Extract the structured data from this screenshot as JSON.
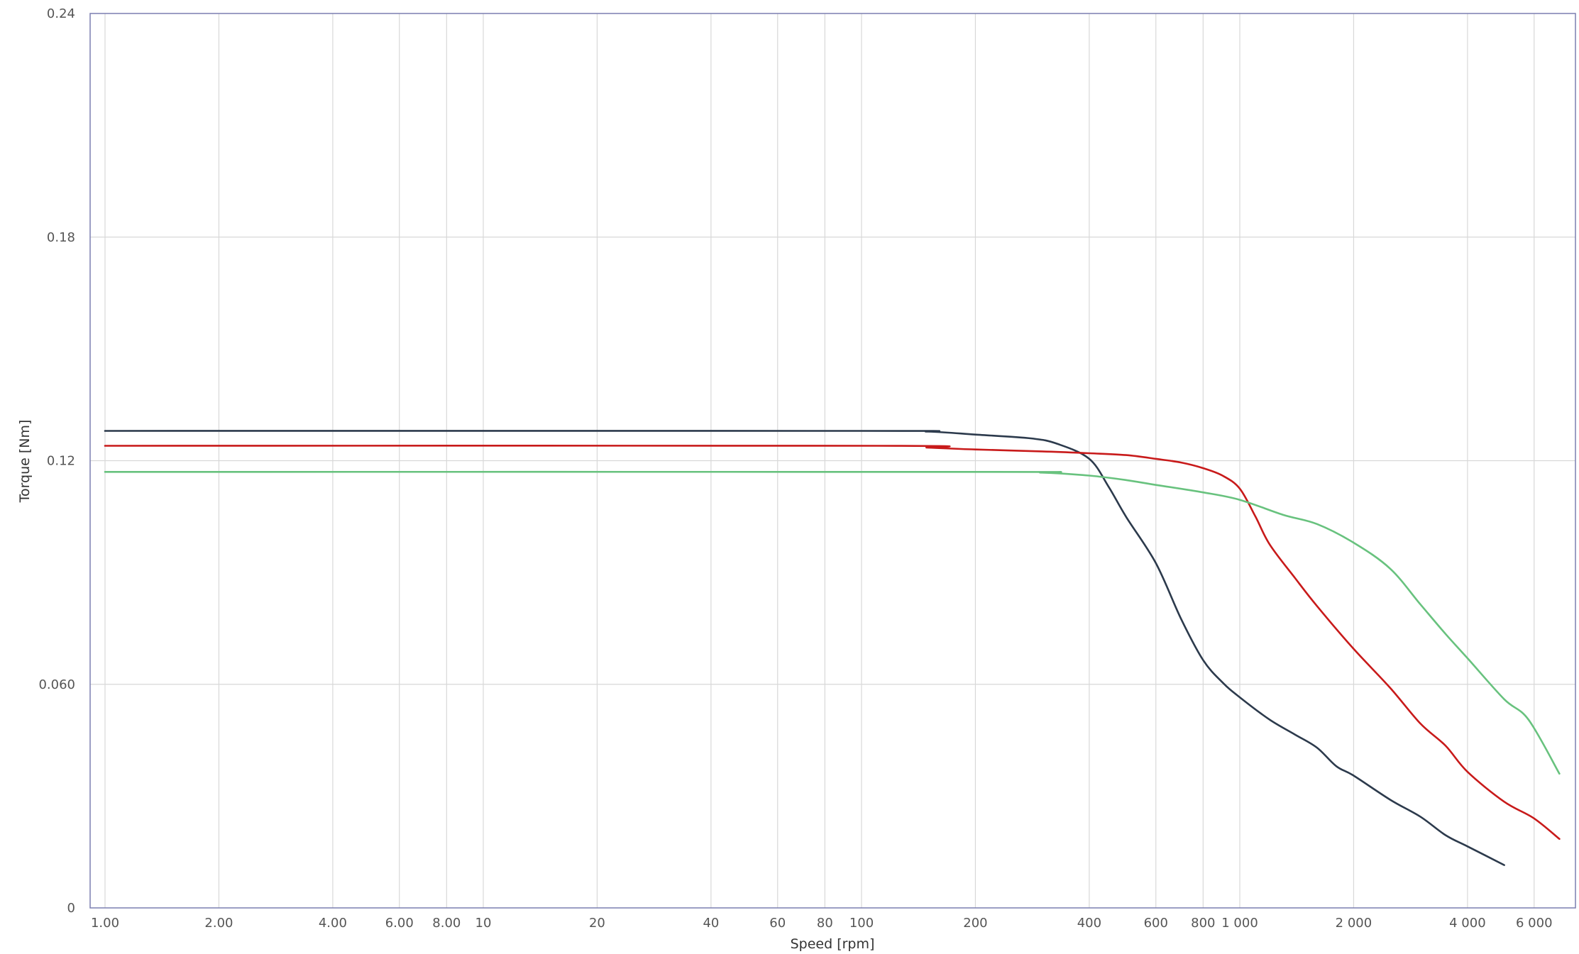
{
  "chart_data": {
    "type": "line",
    "title": "",
    "xlabel": "Speed [rpm]",
    "ylabel": "Torque [Nm]",
    "x_scale": "log",
    "xlim": [
      1,
      7500
    ],
    "ylim": [
      0,
      0.24
    ],
    "grid": true,
    "legend": "none",
    "x_ticks": [
      {
        "value": 1,
        "label": "1.00"
      },
      {
        "value": 2,
        "label": "2.00"
      },
      {
        "value": 4,
        "label": "4.00"
      },
      {
        "value": 6,
        "label": "6.00"
      },
      {
        "value": 8,
        "label": "8.00"
      },
      {
        "value": 10,
        "label": "10"
      },
      {
        "value": 20,
        "label": "20"
      },
      {
        "value": 40,
        "label": "40"
      },
      {
        "value": 60,
        "label": "60"
      },
      {
        "value": 80,
        "label": "80"
      },
      {
        "value": 100,
        "label": "100"
      },
      {
        "value": 200,
        "label": "200"
      },
      {
        "value": 400,
        "label": "400"
      },
      {
        "value": 600,
        "label": "600"
      },
      {
        "value": 800,
        "label": "800"
      },
      {
        "value": 1000,
        "label": "1 000"
      },
      {
        "value": 2000,
        "label": "2 000"
      },
      {
        "value": 4000,
        "label": "4 000"
      },
      {
        "value": 6000,
        "label": "6 000"
      }
    ],
    "y_ticks": [
      {
        "value": 0,
        "label": "0"
      },
      {
        "value": 0.06,
        "label": "0.060"
      },
      {
        "value": 0.12,
        "label": "0.12"
      },
      {
        "value": 0.18,
        "label": "0.18"
      },
      {
        "value": 0.24,
        "label": "0.24"
      }
    ],
    "series": [
      {
        "color": "#2c3a4c",
        "points": [
          [
            1,
            0.128
          ],
          [
            100,
            0.128
          ],
          [
            150,
            0.1278
          ],
          [
            200,
            0.127
          ],
          [
            280,
            0.126
          ],
          [
            330,
            0.1245
          ],
          [
            400,
            0.1205
          ],
          [
            450,
            0.113
          ],
          [
            500,
            0.105
          ],
          [
            600,
            0.0925
          ],
          [
            700,
            0.0775
          ],
          [
            800,
            0.0665
          ],
          [
            900,
            0.0605
          ],
          [
            1000,
            0.0565
          ],
          [
            1200,
            0.0505
          ],
          [
            1400,
            0.0465
          ],
          [
            1600,
            0.043
          ],
          [
            1800,
            0.038
          ],
          [
            2000,
            0.0355
          ],
          [
            2500,
            0.029
          ],
          [
            3000,
            0.0245
          ],
          [
            3500,
            0.0195
          ],
          [
            4000,
            0.0165
          ],
          [
            5000,
            0.0115
          ]
        ]
      },
      {
        "color": "#c81a1a",
        "points": [
          [
            1,
            0.124
          ],
          [
            110,
            0.124
          ],
          [
            150,
            0.1235
          ],
          [
            200,
            0.123
          ],
          [
            300,
            0.1225
          ],
          [
            400,
            0.122
          ],
          [
            500,
            0.1215
          ],
          [
            600,
            0.1205
          ],
          [
            700,
            0.1195
          ],
          [
            800,
            0.118
          ],
          [
            900,
            0.116
          ],
          [
            1000,
            0.1125
          ],
          [
            1100,
            0.105
          ],
          [
            1200,
            0.0975
          ],
          [
            1400,
            0.0885
          ],
          [
            1600,
            0.081
          ],
          [
            2000,
            0.0695
          ],
          [
            2500,
            0.059
          ],
          [
            3000,
            0.0495
          ],
          [
            3500,
            0.0435
          ],
          [
            4000,
            0.0365
          ],
          [
            5000,
            0.0285
          ],
          [
            6000,
            0.024
          ],
          [
            7000,
            0.0185
          ]
        ]
      },
      {
        "color": "#68c27e",
        "points": [
          [
            1,
            0.117
          ],
          [
            200,
            0.117
          ],
          [
            300,
            0.1168
          ],
          [
            400,
            0.116
          ],
          [
            500,
            0.1148
          ],
          [
            600,
            0.1135
          ],
          [
            800,
            0.1115
          ],
          [
            1000,
            0.1095
          ],
          [
            1300,
            0.1055
          ],
          [
            1600,
            0.103
          ],
          [
            2000,
            0.098
          ],
          [
            2500,
            0.091
          ],
          [
            3000,
            0.0815
          ],
          [
            3500,
            0.0735
          ],
          [
            4000,
            0.067
          ],
          [
            5000,
            0.056
          ],
          [
            5800,
            0.0505
          ],
          [
            7000,
            0.036
          ]
        ]
      }
    ]
  }
}
